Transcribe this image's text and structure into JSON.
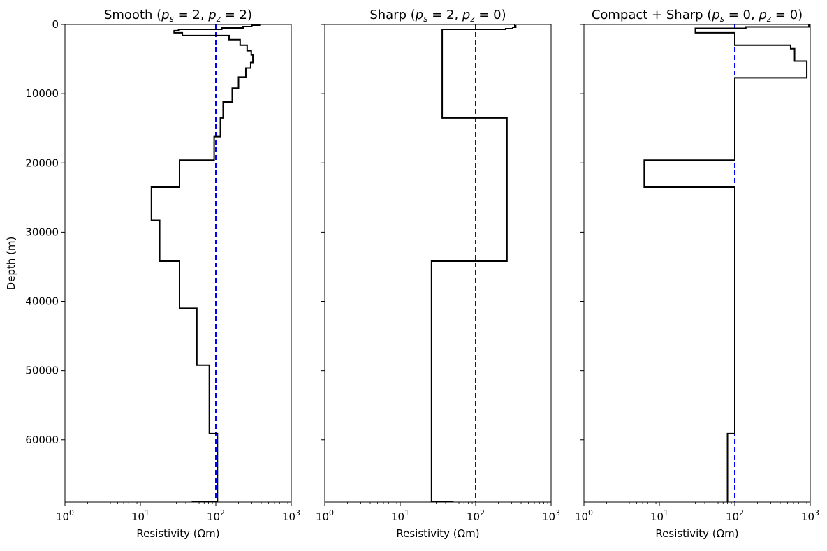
{
  "chart_data": [
    {
      "type": "line",
      "title": "Smooth ($p_s=2, p_z=2$)",
      "title_parts": {
        "prefix": "Smooth (",
        "p1": "p",
        "s1": "s",
        "eq1": " = 2, ",
        "p2": "p",
        "s2": "z",
        "eq2": " = 2)"
      },
      "xlabel": "Resistivity (Ωm)",
      "ylabel": "Depth (m)",
      "xscale": "log",
      "xlim": [
        1,
        1000
      ],
      "ylim": [
        69000,
        0
      ],
      "x_tick_labels": [
        "10^0",
        "10^1",
        "10^2",
        "10^3"
      ],
      "y_tick_labels": [
        "0",
        "10000",
        "20000",
        "30000",
        "40000",
        "50000",
        "60000"
      ],
      "show_y_tick_labels": true,
      "reference": {
        "value": 100,
        "color": "#0000ff",
        "style": "dashed"
      },
      "series": [
        {
          "color": "#000000",
          "resistivity": [
            380,
            300,
            230,
            120,
            32,
            28,
            36,
            150,
            210,
            260,
            295,
            310,
            290,
            250,
            200,
            165,
            125,
            115,
            95,
            33,
            14,
            18,
            33,
            56,
            82,
            105,
            48
          ],
          "depth_bottom": [
            100,
            300,
            500,
            700,
            900,
            1200,
            1600,
            2200,
            3000,
            3800,
            4400,
            5500,
            6300,
            7600,
            9200,
            11200,
            13500,
            16200,
            19600,
            23500,
            28300,
            34200,
            41000,
            49200,
            59100,
            69000
          ]
        }
      ]
    },
    {
      "type": "line",
      "title": "Sharp ($p_s=2, p_z=0$)",
      "title_parts": {
        "prefix": "Sharp (",
        "p1": "p",
        "s1": "s",
        "eq1": " = 2, ",
        "p2": "p",
        "s2": "z",
        "eq2": " = 0)"
      },
      "xlabel": "Resistivity (Ωm)",
      "ylabel": "",
      "xscale": "log",
      "xlim": [
        1,
        1000
      ],
      "ylim": [
        69000,
        0
      ],
      "x_tick_labels": [
        "10^0",
        "10^1",
        "10^2",
        "10^3"
      ],
      "y_tick_labels": [],
      "show_y_tick_labels": false,
      "reference": {
        "value": 100,
        "color": "#0000ff",
        "style": "dashed"
      },
      "series": [
        {
          "color": "#000000",
          "resistivity": [
            330,
            340,
            310,
            250,
            36,
            36,
            260,
            26,
            51
          ],
          "depth_bottom": [
            200,
            400,
            600,
            700,
            1600,
            13500,
            34200,
            69000
          ]
        }
      ]
    },
    {
      "type": "line",
      "title": "Compact + Sharp ($p_s=0, p_z=0$)",
      "title_parts": {
        "prefix": "Compact + Sharp (",
        "p1": "p",
        "s1": "s",
        "eq1": " = 0, ",
        "p2": "p",
        "s2": "z",
        "eq2": " = 0)"
      },
      "xlabel": "Resistivity (Ωm)",
      "ylabel": "",
      "xscale": "log",
      "xlim": [
        1,
        1000
      ],
      "ylim": [
        69000,
        0
      ],
      "x_tick_labels": [
        "10^0",
        "10^1",
        "10^2",
        "10^3"
      ],
      "y_tick_labels": [],
      "show_y_tick_labels": false,
      "reference": {
        "value": 100,
        "color": "#0000ff",
        "style": "dashed"
      },
      "series": [
        {
          "color": "#000000",
          "resistivity": [
            990,
            960,
            140,
            30,
            30,
            100,
            550,
            620,
            900,
            100,
            6.3,
            100,
            80
          ],
          "depth_bottom": [
            150,
            350,
            550,
            900,
            1200,
            3000,
            3500,
            5300,
            7700,
            19600,
            23500,
            59100,
            69000
          ]
        }
      ]
    }
  ]
}
